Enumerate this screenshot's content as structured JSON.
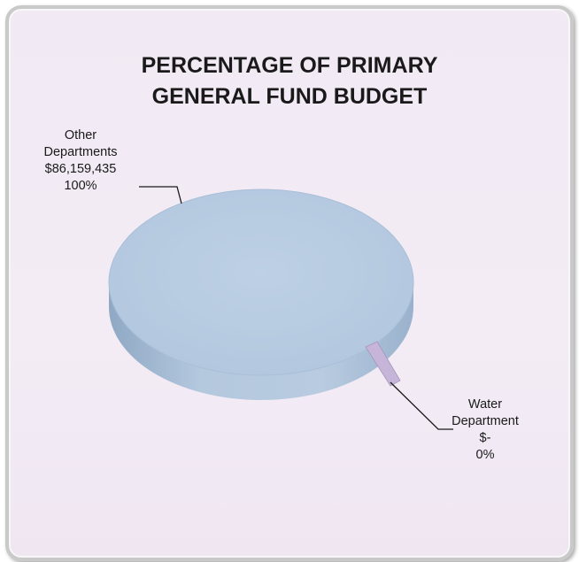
{
  "chart_data": {
    "type": "pie",
    "title": [
      "PERCENTAGE OF PRIMARY",
      "GENERAL FUND BUDGET"
    ],
    "slices": [
      {
        "label_lines": [
          "Other",
          "Departments",
          "$86,159,435",
          "100%"
        ],
        "amount": 86159435,
        "percent": 100,
        "color": "#b9cde2"
      },
      {
        "label_lines": [
          "Water",
          "Department",
          "$-",
          "0%"
        ],
        "amount": 0,
        "percent": 0,
        "color": "#c6b5d8"
      }
    ],
    "style": "3d"
  },
  "colors": {
    "background": "#f2eaf4",
    "frame_border": "#c9c9c9",
    "pie_top": "#b9cde2",
    "pie_side": "#9fb8d3",
    "water_slice": "#c6b5d8"
  }
}
